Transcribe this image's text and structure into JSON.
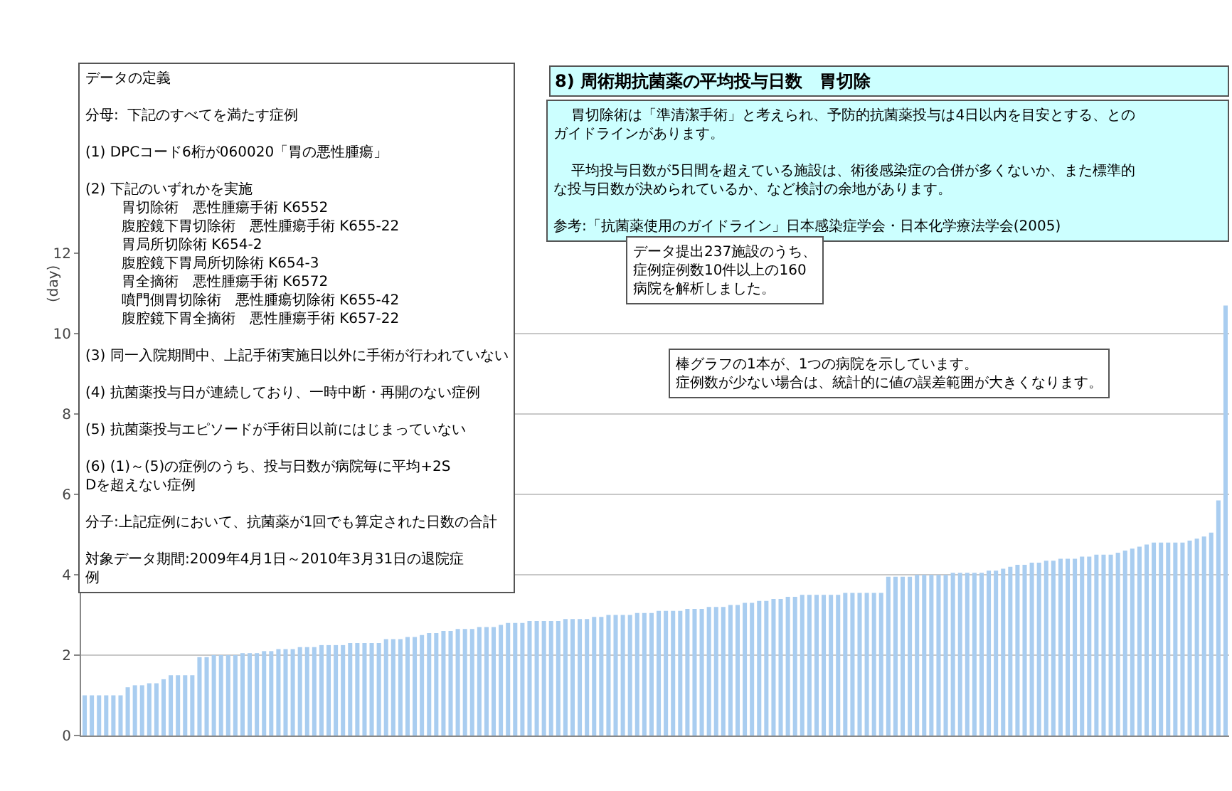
{
  "chart_data": {
    "type": "bar",
    "title": "8) 周術期抗菌薬の平均投与日数　胃切除",
    "ylabel": "(day)",
    "categories": [
      null,
      null,
      null,
      null,
      null,
      null,
      null,
      null,
      null,
      null,
      null,
      null,
      null,
      null,
      null,
      null,
      null,
      null,
      null,
      null,
      null,
      null,
      null,
      null,
      null,
      null,
      null,
      null,
      null,
      null,
      null,
      null,
      null,
      null,
      null,
      null,
      null,
      null,
      null,
      null,
      null,
      null,
      null,
      null,
      null,
      null,
      null,
      null,
      null,
      null,
      null,
      null,
      null,
      null,
      null,
      null,
      null,
      null,
      null,
      null,
      null,
      null,
      null,
      null,
      null,
      null,
      null,
      null,
      null,
      null,
      null,
      null,
      null,
      null,
      null,
      null,
      null,
      null,
      null,
      null,
      null,
      null,
      null,
      null,
      null,
      null,
      null,
      null,
      null,
      null,
      null,
      null,
      null,
      null,
      null,
      null,
      null,
      null,
      null,
      null,
      null,
      null,
      null,
      null,
      null,
      null,
      null,
      null,
      null,
      null,
      null,
      null,
      null,
      null,
      null,
      null,
      null,
      null,
      null,
      null,
      null,
      null,
      null,
      null,
      null,
      null,
      null,
      null,
      null,
      null,
      null,
      null,
      null,
      null,
      null,
      null,
      null,
      null,
      null,
      null,
      null,
      null,
      null,
      null,
      null,
      null,
      null,
      null,
      null,
      null,
      null,
      null,
      null,
      null,
      null,
      null,
      null,
      null,
      null,
      null
    ],
    "values": [
      1.0,
      1.0,
      1.0,
      1.0,
      1.0,
      1.0,
      1.2,
      1.25,
      1.25,
      1.3,
      1.3,
      1.4,
      1.5,
      1.5,
      1.5,
      1.5,
      1.95,
      1.95,
      2.0,
      2.0,
      2.0,
      2.0,
      2.05,
      2.05,
      2.05,
      2.1,
      2.1,
      2.15,
      2.15,
      2.15,
      2.2,
      2.2,
      2.2,
      2.25,
      2.25,
      2.25,
      2.25,
      2.3,
      2.3,
      2.3,
      2.3,
      2.3,
      2.4,
      2.4,
      2.4,
      2.45,
      2.45,
      2.5,
      2.55,
      2.55,
      2.6,
      2.6,
      2.65,
      2.65,
      2.65,
      2.7,
      2.7,
      2.7,
      2.75,
      2.8,
      2.8,
      2.8,
      2.85,
      2.85,
      2.85,
      2.85,
      2.85,
      2.9,
      2.9,
      2.9,
      2.9,
      2.95,
      2.95,
      3.0,
      3.0,
      3.0,
      3.0,
      3.05,
      3.05,
      3.05,
      3.1,
      3.1,
      3.1,
      3.1,
      3.15,
      3.15,
      3.15,
      3.2,
      3.2,
      3.2,
      3.25,
      3.25,
      3.3,
      3.3,
      3.35,
      3.35,
      3.4,
      3.4,
      3.45,
      3.45,
      3.5,
      3.5,
      3.5,
      3.5,
      3.5,
      3.5,
      3.55,
      3.55,
      3.55,
      3.55,
      3.55,
      3.55,
      3.95,
      3.95,
      3.95,
      3.95,
      4.0,
      4.0,
      4.0,
      4.0,
      4.0,
      4.05,
      4.05,
      4.05,
      4.05,
      4.05,
      4.1,
      4.1,
      4.15,
      4.2,
      4.25,
      4.25,
      4.3,
      4.3,
      4.35,
      4.35,
      4.4,
      4.4,
      4.4,
      4.45,
      4.45,
      4.5,
      4.5,
      4.5,
      4.55,
      4.6,
      4.65,
      4.7,
      4.75,
      4.8,
      4.8,
      4.8,
      4.8,
      4.8,
      4.85,
      4.9,
      4.95,
      5.05,
      5.85,
      10.7
    ],
    "color": "#a9cdf0",
    "ylim": [
      0,
      12
    ],
    "yticks": [
      0,
      2,
      4,
      6,
      8,
      10,
      12
    ],
    "grid": "y",
    "tick_labels": "y",
    "annotations": [
      "データの定義",
      "分母:  下記のすべてを満たす症例",
      "(1) DPCコード6桁が060020「胃の悪性腫瘍」",
      "(2) 下記のいずれかを実施",
      "胃切除術　悪性腫瘍手術 K6552",
      "腹腔鏡下胃切除術　悪性腫瘍手術 K655-22",
      "胃局所切除術 K654-2",
      "腹腔鏡下胃局所切除術 K654-3",
      "胃全摘術　悪性腫瘍手術 K6572",
      "噴門側胃切除術　悪性腫瘍切除術 K655-42",
      "腹腔鏡下胃全摘術　悪性腫瘍手術 K657-22",
      "(3) 同一入院期間中、上記手術実施日以外に手術が行われていない",
      "(4) 抗菌薬投与日が連続しており、一時中断・再開のない症例",
      "(5) 抗菌薬投与エピソードが手術日以前にはじまっていない",
      "(6) (1)～(5)の症例のうち、投与日数が病院毎に平均+2SDを超えない症例",
      "分子:上記症例において、抗菌薬が1回でも算定された日数の合計",
      "対象データ期間:2009年4月1日～2010年3月31日の退院症例",
      "胃切除術は「準清潔手術」と考えられ、予防的抗菌薬投与は4日以内を目安とする、とのガイドラインがあります。",
      "平均投与日数が5日間を超えている施設は、術後感染症の合併が多くないか、また標準的な投与日数が決められているか、など検討の余地があります。",
      "参考:「抗菌薬使用のガイドライン」日本感染症学会・日本化学療法学会(2005)",
      "データ提出237施設のうち、症例症例数10件以上の160病院を解析しました。",
      "棒グラフの1本が、1つの病院を示しています。",
      "症例数が少ない場合は、統計的に値の誤差範囲が大きくなります。"
    ]
  }
}
